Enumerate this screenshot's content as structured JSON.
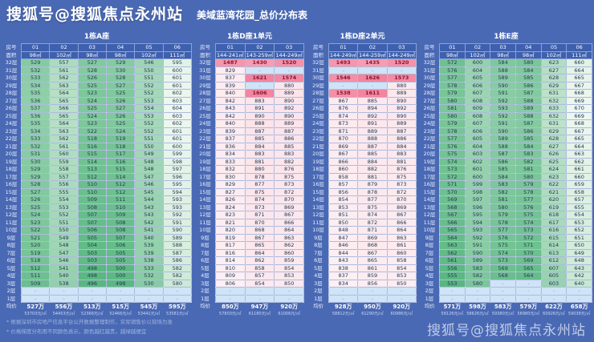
{
  "page": {
    "brand_top_left": "搜狐号@搜狐焦点永州站",
    "brand_bottom_right": "搜狐号@搜狐焦点永州站",
    "footnotes": [
      "* 根据深圳市房地产信息平台公开数据整理制作，实际销售价以现场为准",
      "* 价格梯度分布用不同颜色表示，颜色越红越贵，越绿越便宜"
    ]
  },
  "chart_data": {
    "type": "table",
    "title": "美域蓝湾花园_总价分布表",
    "labels": {
      "room": "房号",
      "area": "面积",
      "avg": "均价"
    },
    "colors": {
      "background": "#4a69b4",
      "header_blue": "#3e60ae",
      "green_low": "#57b77f",
      "green_high": "#eef7f0",
      "pink_low": "#fdeff3",
      "pink_high": "#f2849e",
      "hot_text": "#8e1430",
      "dash_blue": "#cfe4f7"
    },
    "floors": [
      "32层",
      "31层",
      "30层",
      "29层",
      "28层",
      "27层",
      "26层",
      "25层",
      "24层",
      "23层",
      "22层",
      "21层",
      "20层",
      "19层",
      "18层",
      "17层",
      "16层",
      "15层",
      "14层",
      "13层",
      "12层",
      "11层",
      "10层",
      "9层",
      "8层",
      "7层",
      "6层",
      "5层",
      "4层",
      "3层",
      "2层",
      "1层"
    ],
    "tables": [
      {
        "id": "building-a",
        "title": "1栋A座",
        "palette": "green",
        "columns": [
          "01",
          "02",
          "03",
          "04",
          "05",
          "06"
        ],
        "areas": [
          "98㎡",
          "102㎡",
          "98㎡",
          "98㎡",
          "102㎡",
          "111㎡"
        ],
        "rows": [
          [
            529,
            557,
            527,
            529,
            546,
            595
          ],
          [
            532,
            561,
            528,
            530,
            550,
            600
          ],
          [
            533,
            562,
            526,
            528,
            551,
            601
          ],
          [
            534,
            563,
            525,
            527,
            552,
            601
          ],
          [
            535,
            564,
            523,
            525,
            552,
            602
          ],
          [
            536,
            565,
            524,
            526,
            553,
            603
          ],
          [
            537,
            566,
            525,
            527,
            554,
            604
          ],
          [
            536,
            565,
            524,
            526,
            553,
            603
          ],
          [
            535,
            564,
            523,
            525,
            552,
            602
          ],
          [
            534,
            563,
            522,
            524,
            552,
            601
          ],
          [
            533,
            562,
            518,
            519,
            551,
            601
          ],
          [
            532,
            561,
            516,
            518,
            550,
            600
          ],
          [
            531,
            560,
            515,
            517,
            549,
            599
          ],
          [
            530,
            559,
            514,
            516,
            548,
            598
          ],
          [
            529,
            558,
            513,
            515,
            548,
            597
          ],
          [
            529,
            557,
            512,
            514,
            547,
            596
          ],
          [
            528,
            556,
            510,
            512,
            546,
            595
          ],
          [
            527,
            555,
            510,
            512,
            545,
            594
          ],
          [
            526,
            554,
            509,
            511,
            544,
            593
          ],
          [
            525,
            553,
            508,
            510,
            543,
            593
          ],
          [
            524,
            552,
            507,
            509,
            543,
            592
          ],
          [
            523,
            551,
            507,
            508,
            542,
            591
          ],
          [
            522,
            550,
            506,
            508,
            541,
            590
          ],
          [
            521,
            549,
            505,
            507,
            540,
            589
          ],
          [
            520,
            548,
            504,
            506,
            539,
            588
          ],
          [
            519,
            547,
            503,
            505,
            539,
            587
          ],
          [
            518,
            546,
            503,
            505,
            538,
            586
          ],
          [
            512,
            541,
            498,
            500,
            533,
            582
          ],
          [
            511,
            540,
            498,
            500,
            532,
            582
          ],
          [
            509,
            538,
            496,
            498,
            530,
            580
          ],
          [
            "-",
            "-",
            "-",
            "-",
            "-",
            "-"
          ],
          [
            "-",
            "-",
            "-",
            "-",
            "-",
            "-"
          ]
        ],
        "avg": [
          {
            "price": "527万",
            "unit": "53703元/㎡"
          },
          {
            "price": "556万",
            "unit": "54453元/㎡"
          },
          {
            "price": "513万",
            "unit": "52366元/㎡"
          },
          {
            "price": "515万",
            "unit": "52466元/㎡"
          },
          {
            "price": "545万",
            "unit": "53441元/㎡"
          },
          {
            "price": "595万",
            "unit": "53581元/㎡"
          }
        ]
      },
      {
        "id": "building-d1",
        "title": "1栋D座1单元",
        "palette": "pink",
        "columns": [
          "01",
          "02",
          "03"
        ],
        "areas": [
          "144-241㎡",
          "143-259㎡",
          "144-249㎡"
        ],
        "rows": [
          [
            1487,
            1430,
            1520
          ],
          [
            829,
            "-",
            "-"
          ],
          [
            837,
            1621,
            1574
          ],
          [
            839,
            "-",
            880
          ],
          [
            840,
            1606,
            889
          ],
          [
            842,
            883,
            890
          ],
          [
            843,
            891,
            892
          ],
          [
            842,
            890,
            890
          ],
          [
            840,
            888,
            889
          ],
          [
            839,
            887,
            887
          ],
          [
            837,
            885,
            886
          ],
          [
            836,
            884,
            885
          ],
          [
            834,
            883,
            883
          ],
          [
            833,
            881,
            882
          ],
          [
            832,
            880,
            876
          ],
          [
            830,
            878,
            875
          ],
          [
            829,
            877,
            873
          ],
          [
            827,
            875,
            872
          ],
          [
            826,
            874,
            870
          ],
          [
            824,
            873,
            869
          ],
          [
            823,
            871,
            867
          ],
          [
            821,
            870,
            866
          ],
          [
            820,
            868,
            864
          ],
          [
            819,
            867,
            863
          ],
          [
            817,
            865,
            862
          ],
          [
            816,
            864,
            860
          ],
          [
            814,
            862,
            859
          ],
          [
            810,
            858,
            854
          ],
          [
            809,
            857,
            853
          ],
          [
            806,
            854,
            850
          ],
          [
            "-",
            "-",
            "-"
          ],
          [
            "-",
            "-",
            "-"
          ]
        ],
        "avg": [
          {
            "price": "850万",
            "unit": "57803元/㎡"
          },
          {
            "price": "947万",
            "unit": "61180元/㎡"
          },
          {
            "price": "920万",
            "unit": "61006元/㎡"
          }
        ]
      },
      {
        "id": "building-d2",
        "title": "1栋D座2单元",
        "palette": "pink",
        "columns": [
          "01",
          "02",
          "03"
        ],
        "areas": [
          "144-249㎡",
          "144-259㎡",
          "144-249㎡"
        ],
        "rows": [
          [
            1493,
            1435,
            1520
          ],
          [
            "-",
            "-",
            "-"
          ],
          [
            1546,
            1626,
            1573
          ],
          [
            "-",
            "-",
            880
          ],
          [
            1538,
            1611,
            889
          ],
          [
            867,
            885,
            890
          ],
          [
            876,
            894,
            892
          ],
          [
            874,
            892,
            890
          ],
          [
            873,
            891,
            889
          ],
          [
            871,
            889,
            887
          ],
          [
            870,
            888,
            886
          ],
          [
            869,
            887,
            884
          ],
          [
            867,
            885,
            883
          ],
          [
            866,
            884,
            881
          ],
          [
            860,
            882,
            876
          ],
          [
            858,
            881,
            875
          ],
          [
            857,
            879,
            873
          ],
          [
            856,
            878,
            872
          ],
          [
            854,
            877,
            870
          ],
          [
            853,
            875,
            869
          ],
          [
            851,
            874,
            867
          ],
          [
            850,
            872,
            866
          ],
          [
            848,
            871,
            864
          ],
          [
            847,
            869,
            863
          ],
          [
            846,
            868,
            861
          ],
          [
            844,
            867,
            860
          ],
          [
            843,
            865,
            858
          ],
          [
            838,
            861,
            854
          ],
          [
            837,
            859,
            853
          ],
          [
            834,
            856,
            850
          ],
          [
            "-",
            "-",
            "-"
          ],
          [
            "-",
            "-",
            "-"
          ]
        ],
        "avg": [
          {
            "price": "928万",
            "unit": "58812元/㎡"
          },
          {
            "price": "950万",
            "unit": "61290元/㎡"
          },
          {
            "price": "920万",
            "unit": "60986元/㎡"
          }
        ]
      },
      {
        "id": "building-e",
        "title": "1栋E座",
        "palette": "green",
        "columns": [
          "01",
          "02",
          "03",
          "04",
          "05",
          "06"
        ],
        "areas": [
          "98㎡",
          "102㎡",
          "98㎡",
          "98㎡",
          "102㎡",
          "111㎡"
        ],
        "rows": [
          [
            572,
            600,
            584,
            580,
            623,
            660
          ],
          [
            576,
            604,
            588,
            584,
            627,
            664
          ],
          [
            577,
            605,
            589,
            585,
            628,
            665
          ],
          [
            578,
            606,
            590,
            586,
            629,
            667
          ],
          [
            579,
            607,
            591,
            587,
            631,
            668
          ],
          [
            580,
            608,
            592,
            588,
            632,
            669
          ],
          [
            581,
            609,
            593,
            589,
            633,
            670
          ],
          [
            580,
            608,
            592,
            588,
            632,
            669
          ],
          [
            579,
            607,
            591,
            587,
            631,
            668
          ],
          [
            578,
            606,
            590,
            586,
            629,
            667
          ],
          [
            577,
            605,
            589,
            585,
            628,
            665
          ],
          [
            576,
            604,
            588,
            584,
            627,
            664
          ],
          [
            575,
            603,
            587,
            583,
            626,
            663
          ],
          [
            574,
            602,
            586,
            582,
            625,
            662
          ],
          [
            573,
            601,
            585,
            581,
            624,
            661
          ],
          [
            572,
            600,
            584,
            580,
            623,
            660
          ],
          [
            571,
            599,
            583,
            579,
            622,
            659
          ],
          [
            570,
            598,
            582,
            578,
            621,
            658
          ],
          [
            569,
            597,
            581,
            577,
            620,
            657
          ],
          [
            568,
            596,
            580,
            576,
            619,
            655
          ],
          [
            567,
            595,
            579,
            575,
            618,
            654
          ],
          [
            566,
            594,
            578,
            574,
            617,
            653
          ],
          [
            565,
            593,
            577,
            573,
            616,
            652
          ],
          [
            564,
            592,
            576,
            572,
            615,
            651
          ],
          [
            563,
            591,
            575,
            571,
            614,
            650
          ],
          [
            562,
            590,
            574,
            570,
            613,
            649
          ],
          [
            561,
            589,
            573,
            569,
            612,
            648
          ],
          [
            556,
            583,
            569,
            565,
            607,
            643
          ],
          [
            555,
            582,
            568,
            564,
            605,
            642
          ],
          [
            553,
            580,
            "-",
            "-",
            603,
            640
          ],
          [
            "-",
            "-",
            "-",
            "-",
            "-",
            "-"
          ],
          [
            "-",
            "-",
            "-",
            "-",
            "-",
            "-"
          ]
        ],
        "avg": [
          {
            "price": "571万",
            "unit": "58126元/㎡"
          },
          {
            "price": "598万",
            "unit": "58626元/㎡"
          },
          {
            "price": "583万",
            "unit": "59380元/㎡"
          },
          {
            "price": "579万",
            "unit": "58980元/㎡"
          },
          {
            "price": "622万",
            "unit": "60926元/㎡"
          },
          {
            "price": "658万",
            "unit": "59038元/㎡"
          }
        ]
      }
    ]
  }
}
